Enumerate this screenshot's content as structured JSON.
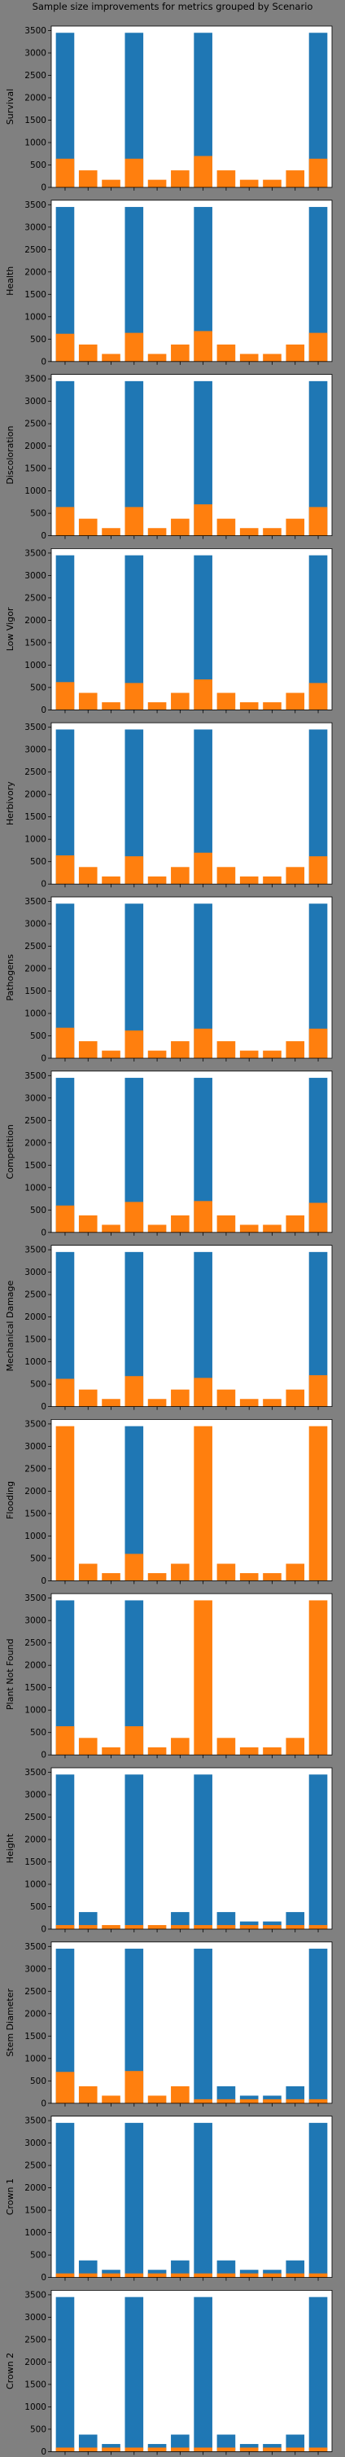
{
  "title": "Sample size improvements for metrics grouped by Scenario",
  "colors": {
    "figure_bg": "#808080",
    "axes_bg": "#ffffff",
    "blue": "#1f77b4",
    "orange": "#ff7f0e"
  },
  "chart_data": [
    {
      "type": "bar",
      "ylabel": "Survival",
      "ylim": [
        0,
        3600
      ],
      "yticks": [
        0,
        500,
        1000,
        1500,
        2000,
        2500,
        3000,
        3500
      ],
      "series": [
        {
          "values": [
            3450,
            0,
            0,
            3450,
            0,
            0,
            3450,
            0,
            0,
            0,
            0,
            3450
          ]
        },
        {
          "values": [
            640,
            380,
            170,
            640,
            170,
            380,
            700,
            380,
            170,
            170,
            380,
            640
          ]
        }
      ]
    },
    {
      "type": "bar",
      "ylabel": "Health",
      "ylim": [
        0,
        3600
      ],
      "yticks": [
        0,
        500,
        1000,
        1500,
        2000,
        2500,
        3000,
        3500
      ],
      "series": [
        {
          "values": [
            3450,
            0,
            0,
            3450,
            0,
            0,
            3450,
            0,
            0,
            0,
            0,
            3450
          ]
        },
        {
          "values": [
            620,
            380,
            170,
            640,
            170,
            380,
            680,
            380,
            170,
            170,
            380,
            640
          ]
        }
      ]
    },
    {
      "type": "bar",
      "ylabel": "Discoloration",
      "ylim": [
        0,
        3600
      ],
      "yticks": [
        0,
        500,
        1000,
        1500,
        2000,
        2500,
        3000,
        3500
      ],
      "series": [
        {
          "values": [
            3450,
            0,
            0,
            3450,
            0,
            0,
            3450,
            0,
            0,
            0,
            0,
            3450
          ]
        },
        {
          "values": [
            640,
            380,
            170,
            640,
            170,
            380,
            700,
            380,
            170,
            170,
            380,
            640
          ]
        }
      ]
    },
    {
      "type": "bar",
      "ylabel": "Low Vigor",
      "ylim": [
        0,
        3600
      ],
      "yticks": [
        0,
        500,
        1000,
        1500,
        2000,
        2500,
        3000,
        3500
      ],
      "series": [
        {
          "values": [
            3450,
            0,
            0,
            3450,
            0,
            0,
            3450,
            0,
            0,
            0,
            0,
            3450
          ]
        },
        {
          "values": [
            620,
            380,
            170,
            600,
            170,
            380,
            680,
            380,
            170,
            170,
            380,
            600
          ]
        }
      ]
    },
    {
      "type": "bar",
      "ylabel": "Herbivory",
      "ylim": [
        0,
        3600
      ],
      "yticks": [
        0,
        500,
        1000,
        1500,
        2000,
        2500,
        3000,
        3500
      ],
      "series": [
        {
          "values": [
            3450,
            0,
            0,
            3450,
            0,
            0,
            3450,
            0,
            0,
            0,
            0,
            3450
          ]
        },
        {
          "values": [
            640,
            380,
            170,
            620,
            170,
            380,
            700,
            380,
            170,
            170,
            380,
            620
          ]
        }
      ]
    },
    {
      "type": "bar",
      "ylabel": "Pathogens",
      "ylim": [
        0,
        3600
      ],
      "yticks": [
        0,
        500,
        1000,
        1500,
        2000,
        2500,
        3000,
        3500
      ],
      "series": [
        {
          "values": [
            3450,
            0,
            0,
            3450,
            0,
            0,
            3450,
            0,
            0,
            0,
            0,
            3450
          ]
        },
        {
          "values": [
            680,
            380,
            170,
            620,
            170,
            380,
            660,
            380,
            170,
            170,
            380,
            660
          ]
        }
      ]
    },
    {
      "type": "bar",
      "ylabel": "Competition",
      "ylim": [
        0,
        3600
      ],
      "yticks": [
        0,
        500,
        1000,
        1500,
        2000,
        2500,
        3000,
        3500
      ],
      "series": [
        {
          "values": [
            3450,
            0,
            0,
            3450,
            0,
            0,
            3450,
            0,
            0,
            0,
            0,
            3450
          ]
        },
        {
          "values": [
            600,
            380,
            170,
            680,
            170,
            380,
            700,
            380,
            170,
            170,
            380,
            660
          ]
        }
      ]
    },
    {
      "type": "bar",
      "ylabel": "Mechanical Damage",
      "ylim": [
        0,
        3600
      ],
      "yticks": [
        0,
        500,
        1000,
        1500,
        2000,
        2500,
        3000,
        3500
      ],
      "series": [
        {
          "values": [
            3450,
            0,
            0,
            3450,
            0,
            0,
            3450,
            0,
            0,
            0,
            0,
            3450
          ]
        },
        {
          "values": [
            620,
            380,
            170,
            680,
            170,
            380,
            640,
            380,
            170,
            170,
            380,
            700
          ]
        }
      ]
    },
    {
      "type": "bar",
      "ylabel": "Flooding",
      "ylim": [
        0,
        3600
      ],
      "yticks": [
        0,
        500,
        1000,
        1500,
        2000,
        2500,
        3000,
        3500
      ],
      "series": [
        {
          "values": [
            0,
            0,
            0,
            3450,
            0,
            0,
            0,
            0,
            0,
            0,
            0,
            0
          ]
        },
        {
          "values": [
            3450,
            380,
            170,
            600,
            170,
            380,
            3450,
            380,
            170,
            170,
            380,
            3450
          ]
        }
      ]
    },
    {
      "type": "bar",
      "ylabel": "Plant Not Found",
      "ylim": [
        0,
        3600
      ],
      "yticks": [
        0,
        500,
        1000,
        1500,
        2000,
        2500,
        3000,
        3500
      ],
      "series": [
        {
          "values": [
            3450,
            0,
            0,
            3450,
            0,
            0,
            0,
            0,
            0,
            0,
            0,
            0
          ]
        },
        {
          "values": [
            640,
            380,
            170,
            640,
            170,
            380,
            3450,
            380,
            170,
            170,
            380,
            3450
          ]
        }
      ]
    },
    {
      "type": "bar",
      "ylabel": "Height",
      "ylim": [
        0,
        3600
      ],
      "yticks": [
        0,
        500,
        1000,
        1500,
        2000,
        2500,
        3000,
        3500
      ],
      "series": [
        {
          "values": [
            3450,
            380,
            0,
            3450,
            0,
            380,
            3450,
            380,
            170,
            170,
            380,
            3450
          ]
        },
        {
          "values": [
            90,
            90,
            90,
            90,
            90,
            90,
            90,
            90,
            90,
            90,
            90,
            90
          ]
        }
      ]
    },
    {
      "type": "bar",
      "ylabel": "Stem Diameter",
      "ylim": [
        0,
        3600
      ],
      "yticks": [
        0,
        500,
        1000,
        1500,
        2000,
        2500,
        3000,
        3500
      ],
      "series": [
        {
          "values": [
            3450,
            0,
            0,
            3450,
            0,
            0,
            3450,
            380,
            170,
            170,
            380,
            3450
          ]
        },
        {
          "values": [
            700,
            380,
            170,
            720,
            170,
            380,
            90,
            90,
            90,
            90,
            90,
            90
          ]
        }
      ]
    },
    {
      "type": "bar",
      "ylabel": "Crown 1",
      "ylim": [
        0,
        3600
      ],
      "yticks": [
        0,
        500,
        1000,
        1500,
        2000,
        2500,
        3000,
        3500
      ],
      "series": [
        {
          "values": [
            3450,
            380,
            170,
            3450,
            170,
            380,
            3450,
            380,
            170,
            170,
            380,
            3450
          ]
        },
        {
          "values": [
            90,
            90,
            90,
            90,
            90,
            90,
            90,
            90,
            90,
            90,
            90,
            90
          ]
        }
      ]
    },
    {
      "type": "bar",
      "ylabel": "Crown 2",
      "ylim": [
        0,
        3600
      ],
      "yticks": [
        0,
        500,
        1000,
        1500,
        2000,
        2500,
        3000,
        3500
      ],
      "series": [
        {
          "values": [
            3450,
            380,
            170,
            3450,
            170,
            380,
            3450,
            380,
            170,
            170,
            380,
            3450
          ]
        },
        {
          "values": [
            90,
            90,
            90,
            90,
            90,
            90,
            90,
            90,
            90,
            90,
            90,
            90
          ]
        }
      ]
    }
  ]
}
